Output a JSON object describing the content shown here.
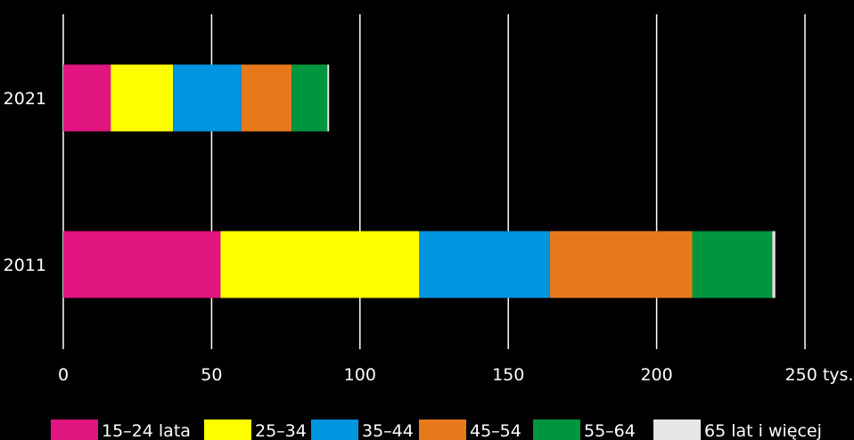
{
  "chart_data": {
    "type": "bar",
    "orientation": "horizontal",
    "stacked": true,
    "categories": [
      "2021",
      "2011"
    ],
    "x_ticks": [
      "0",
      "50",
      "100",
      "150",
      "200",
      "250 tys."
    ],
    "xlim": [
      0,
      250
    ],
    "grid": true,
    "legend_position": "bottom",
    "series": [
      {
        "name": "15–24 lata",
        "color": "#e0157f",
        "values": [
          16,
          53
        ]
      },
      {
        "name": "25–34",
        "color": "#ffff00",
        "values": [
          21,
          67
        ]
      },
      {
        "name": "35–44",
        "color": "#0095df",
        "values": [
          23,
          44
        ]
      },
      {
        "name": "45–54",
        "color": "#e8791b",
        "values": [
          17,
          48
        ]
      },
      {
        "name": "55–64",
        "color": "#009640",
        "values": [
          12,
          27
        ]
      },
      {
        "name": "65 lat i więcej",
        "color": "#e6e6e6",
        "values": [
          0.6,
          1
        ]
      }
    ]
  }
}
